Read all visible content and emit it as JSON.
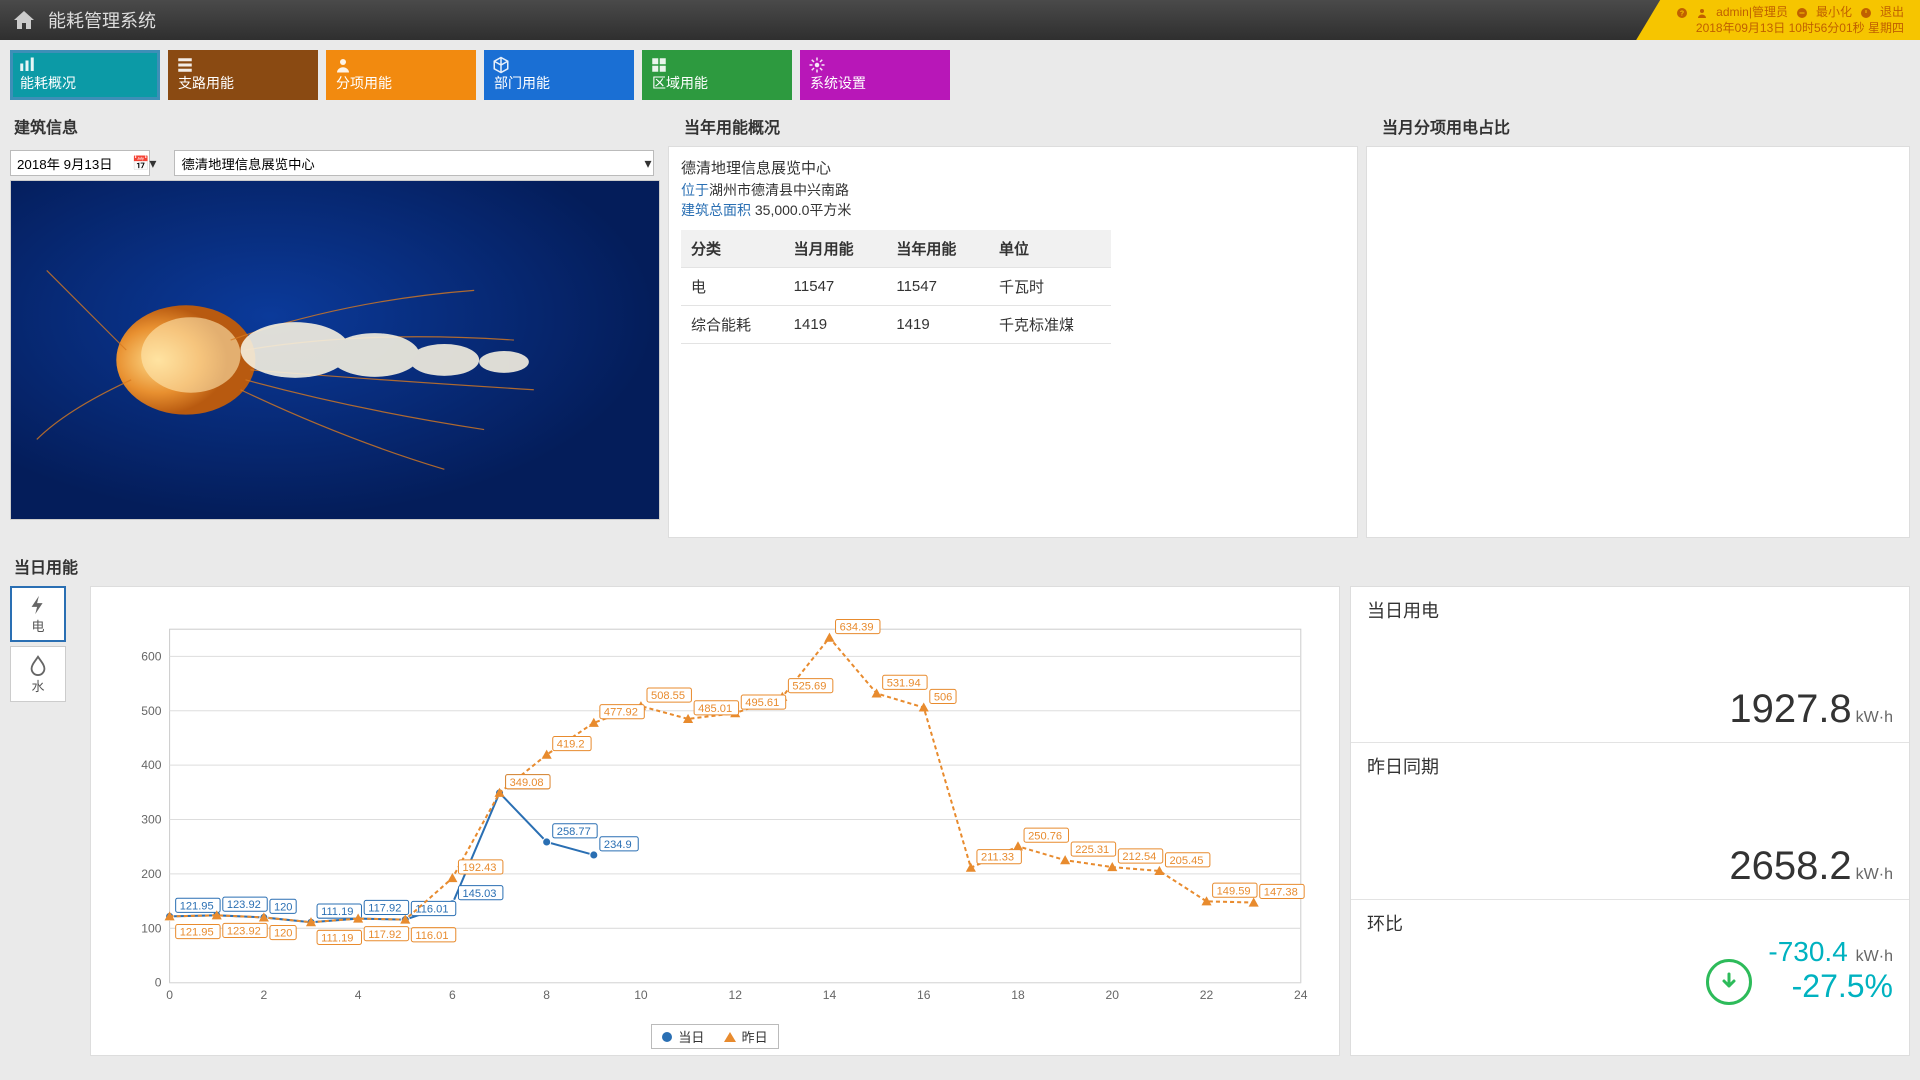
{
  "header": {
    "title": "能耗管理系统",
    "user_label": "admin|管理员",
    "minimize": "最小化",
    "logout": "退出",
    "datetime": "2018年09月13日 10时56分01秒 星期四"
  },
  "nav": {
    "tabs": [
      {
        "label": "能耗概况",
        "color": "#0c9aa6",
        "active": true
      },
      {
        "label": "支路用能",
        "color": "#8a4a12"
      },
      {
        "label": "分项用能",
        "color": "#f28a0f"
      },
      {
        "label": "部门用能",
        "color": "#1a6fd4"
      },
      {
        "label": "区域用能",
        "color": "#2d9a3f"
      },
      {
        "label": "系统设置",
        "color": "#b817b8"
      }
    ]
  },
  "building_info": {
    "title": "建筑信息",
    "date_value": "2018年 9月13日",
    "building_name": "德清地理信息展览中心"
  },
  "year_overview": {
    "title": "当年用能概况",
    "building": "德清地理信息展览中心",
    "location_label": "位于",
    "location": "湖州市德清县中兴南路",
    "area_label": "建筑总面积",
    "area_value": "35,000.0平方米",
    "columns": [
      "分类",
      "当月用能",
      "当年用能",
      "单位"
    ],
    "rows": [
      [
        "电",
        "11547",
        "11547",
        "千瓦时"
      ],
      [
        "综合能耗",
        "1419",
        "1419",
        "千克标准煤"
      ]
    ]
  },
  "month_breakdown": {
    "title": "当月分项用电占比"
  },
  "daily": {
    "title": "当日用能",
    "tabs": [
      {
        "key": "elec",
        "label": "电",
        "active": true
      },
      {
        "key": "water",
        "label": "水"
      }
    ],
    "chart": {
      "type": "line",
      "x_ticks": [
        0,
        2,
        4,
        6,
        8,
        10,
        12,
        14,
        16,
        18,
        20,
        22,
        24
      ],
      "y_ticks": [
        0,
        100,
        200,
        300,
        400,
        500,
        600
      ],
      "ylim": [
        0,
        650
      ],
      "grid_color": "#dddddd",
      "background_color": "#ffffff",
      "axis_color": "#999999",
      "label_fontsize": 12,
      "label_box_fontsize": 11,
      "series": [
        {
          "name": "当日",
          "color": "#2a6fb3",
          "marker": "circle",
          "points": [
            {
              "x": 0,
              "y": 121.95
            },
            {
              "x": 1,
              "y": 123.92
            },
            {
              "x": 2,
              "y": 120
            },
            {
              "x": 3,
              "y": 111.19
            },
            {
              "x": 4,
              "y": 117.92
            },
            {
              "x": 5,
              "y": 116.01
            },
            {
              "x": 6,
              "y": 145.03
            },
            {
              "x": 7,
              "y": 349.08
            },
            {
              "x": 8,
              "y": 258.77
            },
            {
              "x": 9,
              "y": 234.9
            }
          ]
        },
        {
          "name": "昨日",
          "color": "#e88b2e",
          "marker": "triangle",
          "dashed": true,
          "points": [
            {
              "x": 0,
              "y": 121.95
            },
            {
              "x": 1,
              "y": 123.92
            },
            {
              "x": 2,
              "y": 120
            },
            {
              "x": 3,
              "y": 111.19
            },
            {
              "x": 4,
              "y": 117.92
            },
            {
              "x": 5,
              "y": 116.01
            },
            {
              "x": 6,
              "y": 192.43
            },
            {
              "x": 7,
              "y": 349.08
            },
            {
              "x": 8,
              "y": 419.2
            },
            {
              "x": 9,
              "y": 477.92
            },
            {
              "x": 10,
              "y": 508.55
            },
            {
              "x": 11,
              "y": 485.01
            },
            {
              "x": 12,
              "y": 495.61
            },
            {
              "x": 13,
              "y": 525.69
            },
            {
              "x": 14,
              "y": 634.39
            },
            {
              "x": 15,
              "y": 531.94
            },
            {
              "x": 16,
              "y": 506
            },
            {
              "x": 17,
              "y": 211.33
            },
            {
              "x": 18,
              "y": 250.76
            },
            {
              "x": 19,
              "y": 225.31
            },
            {
              "x": 20,
              "y": 212.54
            },
            {
              "x": 21,
              "y": 205.45
            },
            {
              "x": 22,
              "y": 149.59
            },
            {
              "x": 23,
              "y": 147.38
            }
          ]
        }
      ],
      "legend_today": "当日",
      "legend_yesterday": "昨日"
    },
    "stats": {
      "today_label": "当日用电",
      "today_value": "1927.8",
      "today_unit": "kW·h",
      "yesterday_label": "昨日同期",
      "yesterday_value": "2658.2",
      "yesterday_unit": "kW·h",
      "compare_label": "环比",
      "compare_abs": "-730.4",
      "compare_abs_unit": "kW·h",
      "compare_pct": "-27.5%",
      "compare_color": "#00b2c0"
    }
  }
}
